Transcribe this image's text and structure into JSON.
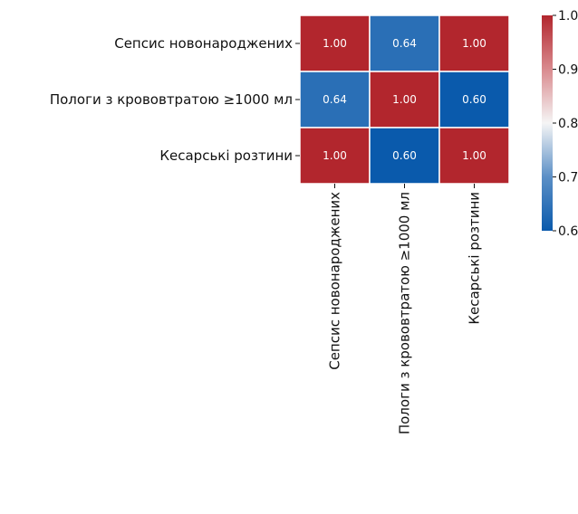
{
  "chart_data": {
    "type": "heatmap",
    "row_labels": [
      "Сепсис новонароджених",
      "Пологи з крововтратою ≥1000 мл",
      "Кесарські розтини"
    ],
    "col_labels": [
      "Сепсис новонароджених",
      "Пологи з крововтратою ≥1000 мл",
      "Кесарські розтини"
    ],
    "values": [
      [
        1.0,
        0.64,
        1.0
      ],
      [
        0.64,
        1.0,
        0.6
      ],
      [
        1.0,
        0.6,
        1.0
      ]
    ],
    "value_labels": [
      [
        "1.00",
        "0.64",
        "1.00"
      ],
      [
        "0.64",
        "1.00",
        "0.60"
      ],
      [
        "1.00",
        "0.60",
        "1.00"
      ]
    ],
    "colorbar": {
      "min": 0.6,
      "max": 1.0,
      "ticks": [
        "0.6",
        "0.7",
        "0.8",
        "0.9",
        "1.0"
      ],
      "tick_values": [
        0.6,
        0.7,
        0.8,
        0.9,
        1.0
      ]
    },
    "colormap": [
      "#0a5aac",
      "#5b8fc6",
      "#f5f5f5",
      "#d98a8e",
      "#b2262d"
    ]
  }
}
